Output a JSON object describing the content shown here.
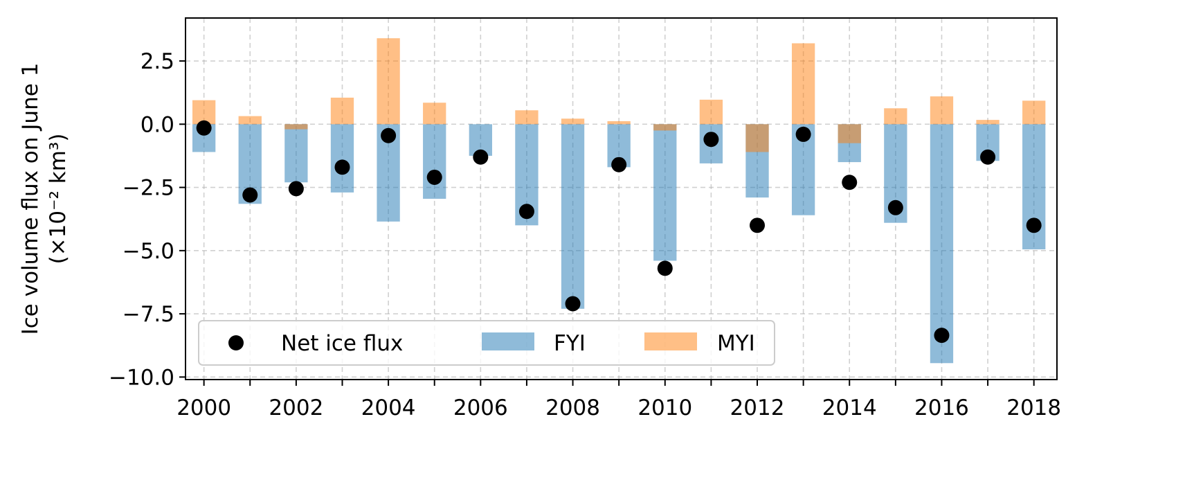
{
  "chart_data": {
    "type": "bar",
    "ylabel_line1": "Ice volume flux on June 1",
    "ylabel_line2": "(×10⁻² km³)",
    "xlim": [
      1999.6,
      2018.5
    ],
    "ylim": [
      -10.1,
      4.2
    ],
    "grid": true,
    "legend_placement": "lower-left",
    "x_ticks": [
      2000,
      2002,
      2004,
      2006,
      2008,
      2010,
      2012,
      2014,
      2016,
      2018
    ],
    "x_tick_labels": [
      "2000",
      "2002",
      "2004",
      "2006",
      "2008",
      "2010",
      "2012",
      "2014",
      "2016",
      "2018"
    ],
    "y_ticks": [
      2.5,
      0.0,
      -2.5,
      -5.0,
      -7.5,
      -10.0
    ],
    "y_tick_labels": [
      "2.5",
      "0.0",
      "−2.5",
      "−5.0",
      "−7.5",
      "−10.0"
    ],
    "categories": [
      2000,
      2001,
      2002,
      2003,
      2004,
      2005,
      2006,
      2007,
      2008,
      2009,
      2010,
      2011,
      2012,
      2013,
      2014,
      2015,
      2016,
      2017,
      2018
    ],
    "series": [
      {
        "name": "FYI",
        "kind": "bar",
        "color": "#1f77b4",
        "values": [
          -1.1,
          -3.15,
          -2.3,
          -2.7,
          -3.85,
          -2.95,
          -1.25,
          -4.0,
          -7.3,
          -1.7,
          -5.4,
          -1.55,
          -2.9,
          -3.6,
          -1.5,
          -3.9,
          -9.45,
          -1.45,
          -4.95
        ]
      },
      {
        "name": "MYI",
        "kind": "bar",
        "color": "#ff7f0e",
        "values": [
          0.95,
          0.32,
          -0.2,
          1.05,
          3.4,
          0.85,
          0.0,
          0.55,
          0.22,
          0.12,
          -0.25,
          0.97,
          -1.1,
          3.2,
          -0.75,
          0.63,
          1.1,
          0.17,
          0.93
        ]
      },
      {
        "name": "Net ice flux",
        "kind": "point",
        "color": "#000000",
        "values": [
          -0.15,
          -2.8,
          -2.55,
          -1.7,
          -0.45,
          -2.1,
          -1.3,
          -3.45,
          -7.1,
          -1.6,
          -5.7,
          -0.6,
          -4.0,
          -0.4,
          -2.3,
          -3.3,
          -8.35,
          -1.3,
          -4.0
        ]
      }
    ],
    "legend": [
      "Net ice flux",
      "FYI",
      "MYI"
    ]
  }
}
